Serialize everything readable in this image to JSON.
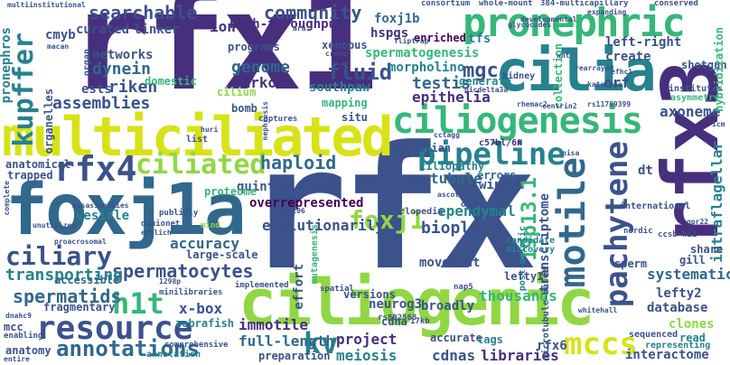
{
  "colors": {
    "purple": "#472f7d",
    "indigo": "#3b528b",
    "blue": "#31688e",
    "teal": "#26828e",
    "green": "#35b779",
    "lime": "#90d743",
    "yellow": "#d8e219",
    "dark": "#440154"
  },
  "words": {
    "rfx1": "rfx1",
    "rfx": "rfx",
    "rfx3": "rfx3",
    "foxj1a": "foxj1a",
    "multiciliated": "multiciliated",
    "ciliogenic": "ciliogenic",
    "cilia": "cilia",
    "pronephric": "pronephric",
    "ciliogenesis": "ciliogenesis",
    "ciliated": "ciliated",
    "rfx4": "rfx4",
    "pipeline": "pipeline",
    "motile": "motile",
    "pachytene": "pachytene",
    "resource": "resource",
    "h1t": "h1t",
    "mccs": "mccs",
    "kv": "kv",
    "annotations": "annotations",
    "ciliary": "ciliary",
    "foxj1": "foxj1",
    "searchable": "searchable",
    "community": "community",
    "kupffer": "kupffer",
    "fluid": "fluid",
    "spermatocytes": "spermatocytes",
    "spermatids": "spermatids",
    "transporting": "transporting",
    "haploid": "haploid",
    "quintuplicate": "quintuplicate",
    "overrepresented": "overrepresented",
    "ependymal": "ependymal",
    "bioplex": "bioplex",
    "genome": "genome",
    "markov": "markov",
    "dynein": "dynein",
    "riken": "riken",
    "assemblies": "assemblies",
    "testis": "testis",
    "epithelia": "epithelia",
    "spermatogenesis": "spermatogenesis",
    "mgc": "mgc",
    "left_right": "left-right",
    "xenopus": "xenopus",
    "morpholino": "morpholino",
    "high_throughput": "high-throughput",
    "foxj1b": "foxj1b",
    "hspgs": "hspgs",
    "tfs": "tfs",
    "enriched": "enriched",
    "tubule": "tubule",
    "winged": "winged",
    "errors": "errors",
    "ciliopathy": "ciliopathy",
    "transcriptome": "transcriptome",
    "n19p13_1": "19p13.1",
    "axoneme": "axoneme",
    "intraflagellar": "intraflagellar",
    "systematic": "systematic",
    "lefty2": "lefty2",
    "database": "database",
    "clones": "clones",
    "interactome": "interactome",
    "libraries": "libraries",
    "cdnas": "cdnas",
    "meiosis": "meiosis",
    "project": "project",
    "full_length": "full-length",
    "immotile": "immotile",
    "x_box": "x-box",
    "zebrafish": "zebrafish",
    "accuracy": "accuracy",
    "large_scale": "large-scale",
    "proteome": "proteome",
    "evolutionarily": "evolutionarily",
    "vesicle": "vesicle",
    "effort": "effort",
    "movement": "movement",
    "thousands": "thousands",
    "broadly": "broadly",
    "accessible": "accessible",
    "fragmentary": "fragmentary",
    "neurog3": "neurog3",
    "southpaw": "southpaw",
    "mapping": "mapping",
    "cilium": "cilium",
    "bomb": "bomb",
    "domestic": "domestic",
    "networks": "networks",
    "organ": "organ",
    "curated": "curated",
    "linker": "linker",
    "cmyb": "cmyb",
    "ion": "ion",
    "pronephros": "pronephros",
    "organelles": "organelles",
    "ests": "ests",
    "programs": "programs",
    "orf": "orf",
    "create": "create",
    "shotgun": "shotgun",
    "generate": "generate",
    "c57bl_6n": "c57bl/6n",
    "dt": "dt",
    "situ": "situ",
    "anatomical": "anatomical",
    "trapped": "trapped",
    "list": "list",
    "mammalian": "mammalian",
    "rfx6": "rfx6",
    "read": "read",
    "representing": "representing",
    "mcc": "mcc",
    "anatomy": "anatomy",
    "accurate": "accurate",
    "tags": "tags",
    "annotation": "annotation",
    "preparation": "preparation",
    "sperm": "sperm",
    "gill": "gill",
    "share": "share",
    "international": "international",
    "cdna": "cdna",
    "versions": "versions",
    "post_meiotic": "post-meiotic",
    "microtubule_based": "microtubule-based",
    "lefty1": "lefty1",
    "multiinstitutional": "multiinstitutional",
    "consortium": "consortium",
    "whole_mount": "whole-mount",
    "n384_multicapillary": "384-multicapillary",
    "conserved": "conserved",
    "kidney": "kidney",
    "collection": "collection",
    "institutes": "institutes",
    "hybridization": "hybridization",
    "asymmetry": "asymmetry",
    "expanding": "expanding",
    "encyclopedia": "encyclopedia",
    "ontology": "ontology",
    "candidate": "candidate",
    "discovery": "discovery",
    "nordic": "nordic",
    "ccsb_hi1": "ccsb-hi1",
    "gpr22": "gpr22",
    "sequenced": "sequenced",
    "implemented": "implemented",
    "minilibraries": "minilibraries",
    "spatial": "spatial",
    "mutagenesis": "mutagenesis",
    "nap5": "nap5",
    "n17kb": "17kb",
    "whitehall": "whitehall",
    "comprehensive": "comprehensive",
    "publicly": "publicly",
    "danionet": "danionet",
    "mind": "mind",
    "rs802568": "rs802568",
    "ascot": "ascot",
    "enabling": "enabling",
    "entire": "entire",
    "dnahc9": "dnahc9",
    "complete": "complete",
    "unutilized": "unutilized",
    "erhlich": "erhlich",
    "misassemblies": "misassemblies",
    "captures": "captures",
    "huri": "huri",
    "picdelta3a": "picdelta3a",
    "flipter": "fliptrap",
    "developmental": "developmental",
    "centrin2": "centrin2",
    "kateryna": "kateryna",
    "efhc1": "efhc1",
    "rs11789399": "rs11789399",
    "rhemac2": "rhemac2",
    "cctagg": "cctagg",
    "macan": "macan",
    "ara": "ara",
    "crocc": "crocc",
    "glycocodes": "glycocodes",
    "rearrayed": "rearrayed",
    "icm": "icm",
    "proacrosomal": "proacrosomal",
    "n1298p": "1298p",
    "nisa": "nisa",
    "wnt": "wnt",
    "nephrosis": "nephrosis",
    "rs12206": "rs12206"
  }
}
